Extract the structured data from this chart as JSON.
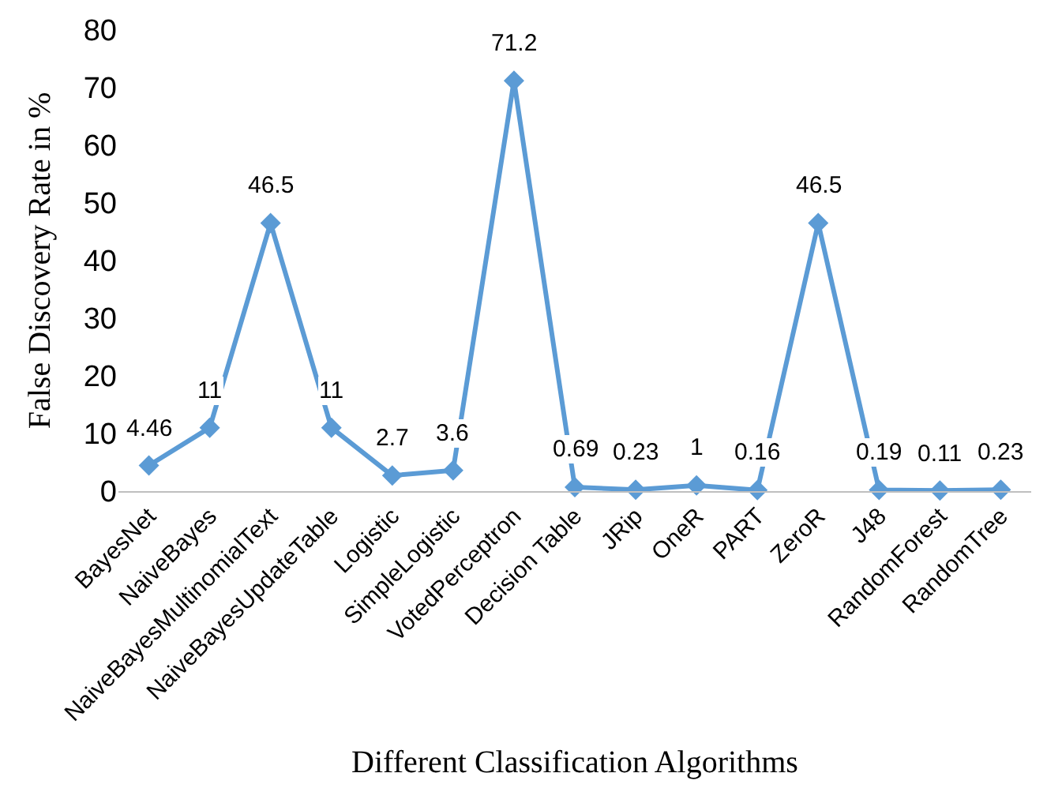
{
  "chart_data": {
    "type": "line",
    "xlabel": "Different Classification Algorithms",
    "ylabel": "False Discovery Rate in %",
    "categories": [
      "BayesNet",
      "NaiveBayes",
      "NaiveBayesMultinomialText",
      "NaiveBayesUpdateTable",
      "Logistic",
      "SimpleLogistic",
      "VotedPerceptron",
      "Decision Table",
      "JRip",
      "OneR",
      "PART",
      "ZeroR",
      "J48",
      "RandomForest",
      "RandomTree"
    ],
    "series": [
      {
        "color": "#5b9bd5",
        "values": [
          4.46,
          11,
          46.5,
          11,
          2.7,
          3.6,
          71.2,
          0.69,
          0.23,
          1,
          0.16,
          46.5,
          0.19,
          0.11,
          0.23
        ]
      }
    ],
    "ylim": [
      0,
      80
    ],
    "yticks": [
      0,
      10,
      20,
      30,
      40,
      50,
      60,
      70,
      80
    ],
    "grid": "none",
    "legend": false,
    "marker": "diamond",
    "line_style": "solid",
    "data_labels": true
  }
}
